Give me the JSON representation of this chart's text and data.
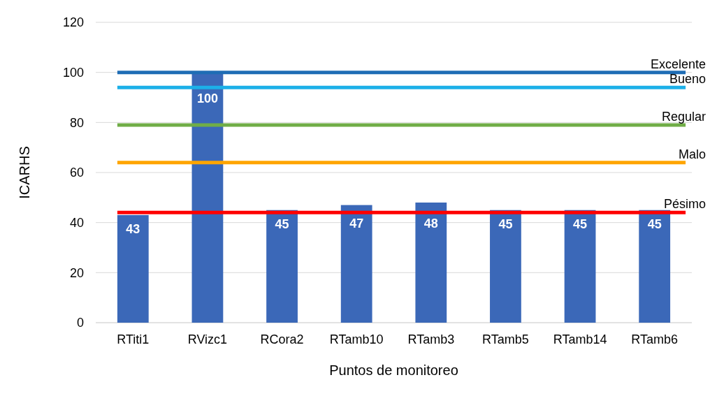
{
  "chart_data": {
    "type": "bar",
    "xlabel": "Puntos de monitoreo",
    "ylabel": "ICARHS",
    "categories": [
      "RTiti1",
      "RVizc1",
      "RCora2",
      "RTamb10",
      "RTamb3",
      "RTamb5",
      "RTamb14",
      "RTamb6"
    ],
    "values": [
      43,
      100,
      45,
      47,
      48,
      45,
      45,
      45
    ],
    "color": "#3b68b8",
    "ylim": [
      0,
      120
    ],
    "yticks": [
      0,
      20,
      40,
      60,
      80,
      100,
      120
    ],
    "grid": "y",
    "data_labels": true,
    "ref_lines": [
      {
        "axis": "y",
        "value": 100,
        "label": "Excelente",
        "color": "#1f6db5"
      },
      {
        "axis": "y",
        "value": 94,
        "label": "Bueno",
        "color": "#1cb0e8"
      },
      {
        "axis": "y",
        "value": 79,
        "label": "Regular",
        "color": "#70ad47"
      },
      {
        "axis": "y",
        "value": 64,
        "label": "Malo",
        "color": "#ffa500"
      },
      {
        "axis": "y",
        "value": 44,
        "label": "Pésimo",
        "color": "#ff0000"
      }
    ]
  }
}
